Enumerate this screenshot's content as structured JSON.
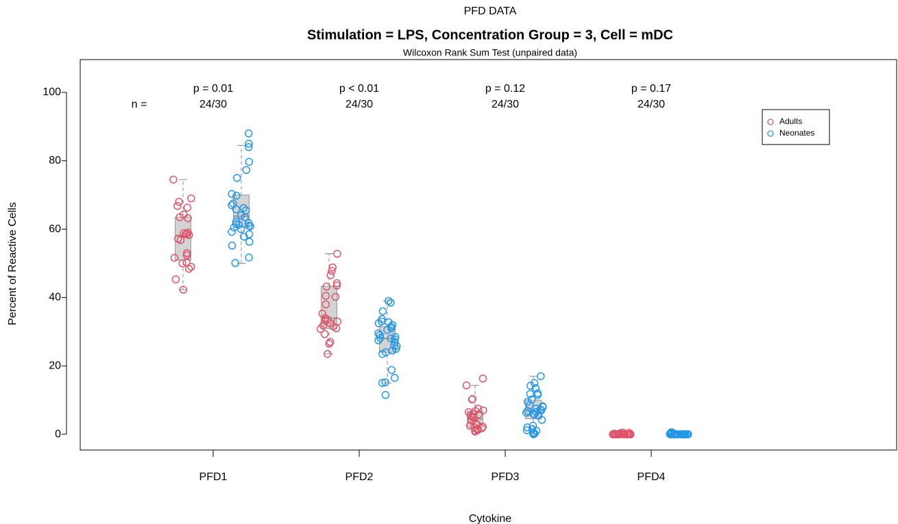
{
  "chart_data": {
    "type": "box_jitter",
    "super_title": "PFD DATA",
    "title": "Stimulation = LPS, Concentration Group = 3, Cell = mDC",
    "subtitle": "Wilcoxon Rank Sum Test (unpaired data)",
    "x_label": "Cytokine",
    "y_label": "Percent of Reactive Cells",
    "categories": [
      "PFD1",
      "PFD2",
      "PFD3",
      "PFD4"
    ],
    "ylim": [
      -4.6,
      109.6
    ],
    "yticks": [
      0,
      20,
      40,
      60,
      80,
      100
    ],
    "legend": "top-right",
    "box_color": "#d3d3d3",
    "n_label": "n =",
    "p_values": [
      "p = 0.01",
      "p < 0.01",
      "p = 0.12",
      "p = 0.17"
    ],
    "counts": [
      "24/30",
      "24/30",
      "24/30",
      "24/30"
    ],
    "series": [
      {
        "name": "Adults",
        "color": "#DF536B",
        "values": [
          [
            74.5,
            69,
            68,
            66.8,
            66.3,
            64.3,
            63.5,
            63.2,
            59,
            58.8,
            58.6,
            58.5,
            58.3,
            57.2,
            56.8,
            53,
            52.4,
            51.6,
            50.3,
            50,
            49,
            48.4,
            45.3,
            42.3
          ],
          [
            52.8,
            48.8,
            47.8,
            46.5,
            44.2,
            43.5,
            43.2,
            40.5,
            40.2,
            38,
            35.3,
            34,
            33.5,
            33.2,
            33,
            32.5,
            31.5,
            31,
            30.8,
            29.3,
            27,
            26.5,
            23.5,
            31.8
          ],
          [
            16.3,
            14.3,
            10.3,
            10.2,
            7.5,
            7,
            6.8,
            6.5,
            6,
            5.5,
            5.2,
            4.8,
            4,
            3.2,
            2.8,
            2.5,
            2.2,
            2,
            1.8,
            1.5,
            1.2,
            1,
            0.8,
            5.8
          ],
          [
            0,
            0,
            0,
            0,
            0,
            0,
            0,
            0,
            0,
            0,
            0,
            0,
            0,
            0,
            0,
            0,
            0,
            0,
            0,
            0,
            0.3,
            0.5,
            0.2,
            0.4
          ]
        ],
        "boxes": [
          {
            "low": 42.3,
            "q1": 51,
            "median": 58,
            "q3": 63.5,
            "high": 74.5
          },
          {
            "low": 23.5,
            "q1": 31,
            "median": 34,
            "q3": 43.3,
            "high": 52.8
          },
          {
            "low": 0.8,
            "q1": 2,
            "median": 4.5,
            "q3": 6.8,
            "high": 14.3
          },
          {
            "low": 0,
            "q1": 0,
            "median": 0,
            "q3": 0,
            "high": 0
          }
        ]
      },
      {
        "name": "Neonates",
        "color": "#2297E6",
        "values": [
          [
            88,
            85,
            84,
            79.7,
            77.3,
            75,
            70.3,
            69.8,
            67.5,
            67,
            66.2,
            65.8,
            65.5,
            64,
            63.5,
            62.2,
            61.8,
            61.5,
            61.3,
            61,
            60.5,
            60,
            59.2,
            58.5,
            57.8,
            56.3,
            55.2,
            51.7,
            50.1,
            60.8
          ],
          [
            39,
            38.5,
            36,
            33.7,
            33,
            32.8,
            32.5,
            32,
            31.5,
            31,
            30.5,
            29.5,
            29,
            28.5,
            28.2,
            28,
            27.8,
            27.5,
            27,
            26,
            25.8,
            25,
            24.5,
            24,
            23.5,
            18.8,
            16.5,
            15.2,
            15,
            11.5
          ],
          [
            17,
            15,
            14.2,
            13.5,
            12,
            11.8,
            11.5,
            10.2,
            9.5,
            8.5,
            8.2,
            8,
            7.5,
            7.2,
            7,
            6.8,
            6.5,
            6.3,
            6,
            5.8,
            5.5,
            4.2,
            2.5,
            2,
            1.5,
            1.2,
            1,
            0.5,
            0.2,
            0
          ],
          [
            0,
            0,
            0,
            0,
            0,
            0,
            0,
            0,
            0,
            0,
            0,
            0,
            0,
            0,
            0,
            0,
            0,
            0,
            0,
            0,
            0,
            0,
            0,
            0,
            0.3,
            0.5,
            0.2,
            0.4,
            0.6,
            0.1
          ]
        ],
        "boxes": [
          {
            "low": 50,
            "q1": 60.5,
            "median": 63.8,
            "q3": 70,
            "high": 84.5
          },
          {
            "low": 15,
            "q1": 24,
            "median": 28,
            "q3": 31.5,
            "high": 39
          },
          {
            "low": 0,
            "q1": 4.5,
            "median": 6.8,
            "q3": 10,
            "high": 17
          },
          {
            "low": 0,
            "q1": 0,
            "median": 0,
            "q3": 0,
            "high": 0
          }
        ]
      }
    ]
  }
}
